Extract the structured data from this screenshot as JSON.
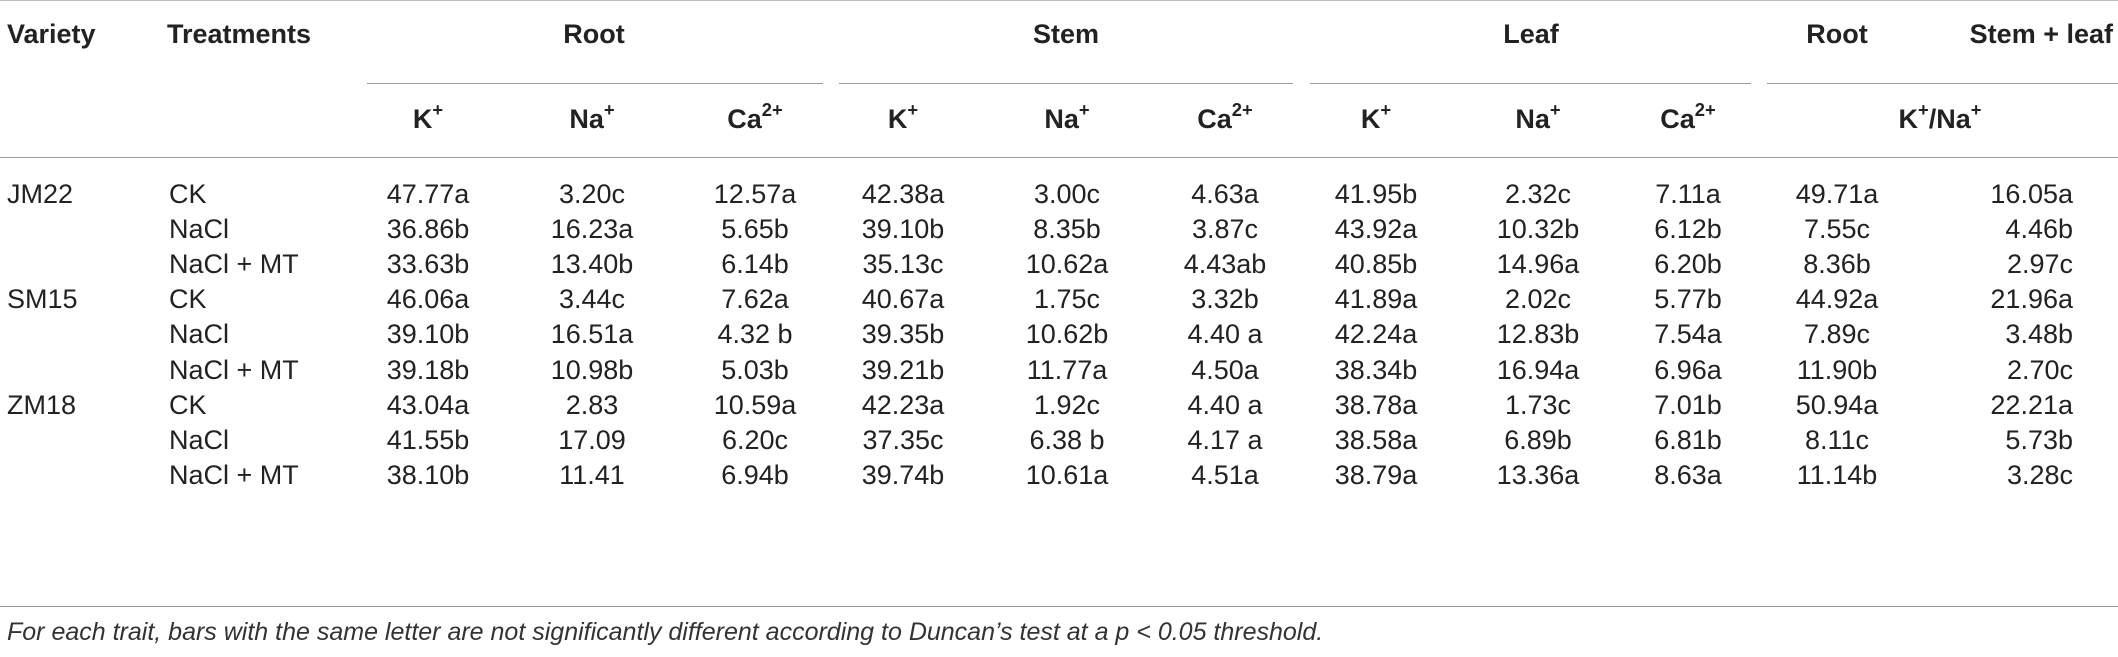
{
  "headers": {
    "variety": "Variety",
    "treatments": "Treatments",
    "groups": [
      "Root",
      "Stem",
      "Leaf",
      "Root",
      "Stem + leaf"
    ],
    "ratio_label": {
      "base1": "K",
      "sup1": "+",
      "slash": "/",
      "base2": "Na",
      "sup2": "+"
    },
    "ions": [
      {
        "base": "K",
        "sup": "+"
      },
      {
        "base": "Na",
        "sup": "+"
      },
      {
        "base": "Ca",
        "sup": "2+"
      },
      {
        "base": "K",
        "sup": "+"
      },
      {
        "base": "Na",
        "sup": "+"
      },
      {
        "base": "Ca",
        "sup": "2+"
      },
      {
        "base": "K",
        "sup": "+"
      },
      {
        "base": "Na",
        "sup": "+"
      },
      {
        "base": "Ca",
        "sup": "2+"
      }
    ]
  },
  "rows": [
    {
      "variety": "JM22",
      "treatment": "CK",
      "values": [
        "47.77a",
        "3.20c",
        "12.57a",
        "42.38a",
        "3.00c",
        "4.63a",
        "41.95b",
        "2.32c",
        "7.11a",
        "49.71a",
        "16.05a"
      ]
    },
    {
      "variety": "",
      "treatment": "NaCl",
      "values": [
        "36.86b",
        "16.23a",
        "5.65b",
        "39.10b",
        "8.35b",
        "3.87c",
        "43.92a",
        "10.32b",
        "6.12b",
        "7.55c",
        "4.46b"
      ]
    },
    {
      "variety": "",
      "treatment": "NaCl + MT",
      "values": [
        "33.63b",
        "13.40b",
        "6.14b",
        "35.13c",
        "10.62a",
        "4.43ab",
        "40.85b",
        "14.96a",
        "6.20b",
        "8.36b",
        "2.97c"
      ]
    },
    {
      "variety": "SM15",
      "treatment": "CK",
      "values": [
        "46.06a",
        "3.44c",
        "7.62a",
        "40.67a",
        "1.75c",
        "3.32b",
        "41.89a",
        "2.02c",
        "5.77b",
        "44.92a",
        "21.96a"
      ]
    },
    {
      "variety": "",
      "treatment": "NaCl",
      "values": [
        "39.10b",
        "16.51a",
        "4.32 b",
        "39.35b",
        "10.62b",
        "4.40 a",
        "42.24a",
        "12.83b",
        "7.54a",
        "7.89c",
        "3.48b"
      ]
    },
    {
      "variety": "",
      "treatment": "NaCl + MT",
      "values": [
        "39.18b",
        "10.98b",
        "5.03b",
        "39.21b",
        "11.77a",
        "4.50a",
        "38.34b",
        "16.94a",
        "6.96a",
        "11.90b",
        "2.70c"
      ]
    },
    {
      "variety": "ZM18",
      "treatment": "CK",
      "values": [
        "43.04a",
        "2.83",
        "10.59a",
        "42.23a",
        "1.92c",
        "4.40 a",
        "38.78a",
        "1.73c",
        "7.01b",
        "50.94a",
        "22.21a"
      ]
    },
    {
      "variety": "",
      "treatment": "NaCl",
      "values": [
        "41.55b",
        "17.09",
        "6.20c",
        "37.35c",
        "6.38 b",
        "4.17 a",
        "38.58a",
        "6.89b",
        "6.81b",
        "8.11c",
        "5.73b"
      ]
    },
    {
      "variety": "",
      "treatment": "NaCl + MT",
      "values": [
        "38.10b",
        "11.41",
        "6.94b",
        "39.74b",
        "10.61a",
        "4.51a",
        "38.79a",
        "13.36a",
        "8.63a",
        "11.14b",
        "3.28c"
      ]
    }
  ],
  "footnote": "For each trait, bars with the same letter are not significantly different according to Duncan’s test at a p < 0.05 threshold."
}
